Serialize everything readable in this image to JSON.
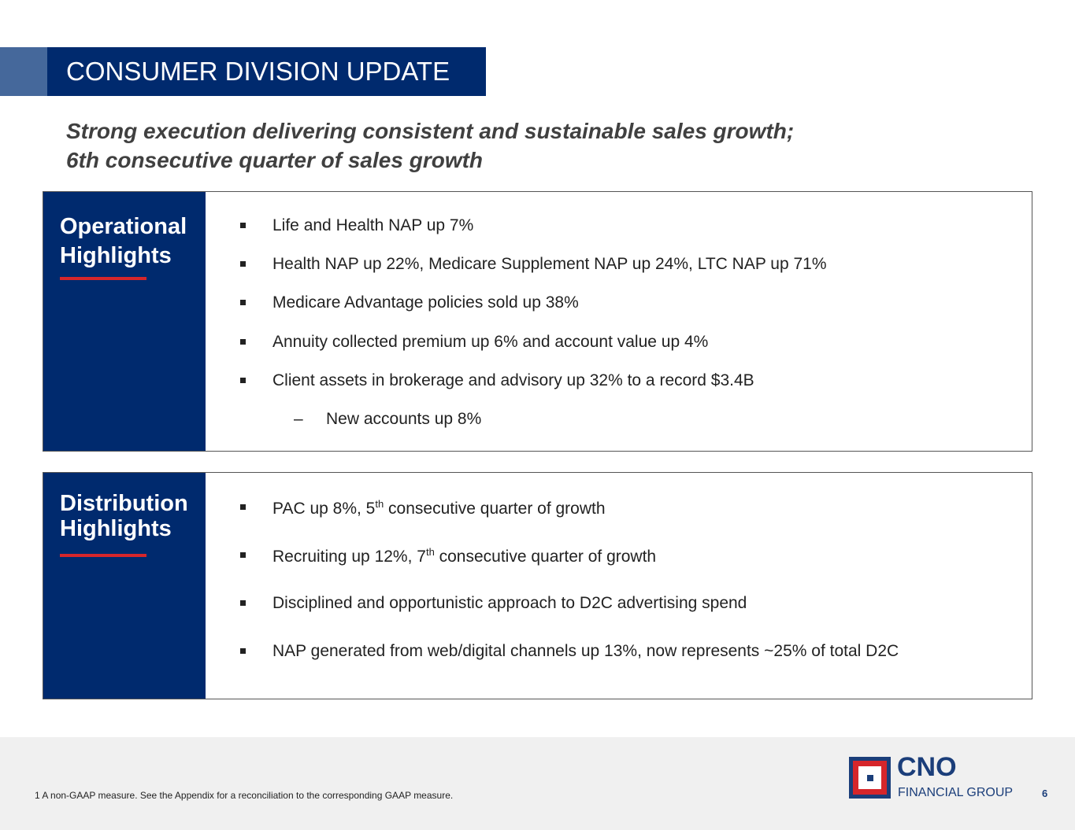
{
  "header": {
    "title": "CONSUMER DIVISION UPDATE"
  },
  "subtitle": {
    "line1": "Strong execution delivering consistent and sustainable sales growth;",
    "line2": "6th consecutive quarter of sales growth"
  },
  "operational": {
    "heading1": "Operational",
    "heading2": "Highlights",
    "items": [
      "Life and Health NAP up 7%",
      "Health NAP up 22%, Medicare Supplement NAP up 24%, LTC NAP up 71%",
      "Medicare Advantage policies sold up 38%",
      "Annuity collected premium up 6% and account value up 4%",
      "Client assets in brokerage and advisory up 32% to a record $3.4B"
    ],
    "subitem": {
      "dash": "–",
      "text": "New accounts up 8%"
    }
  },
  "distribution": {
    "heading1": "Distribution",
    "heading2": "Highlights",
    "items": [
      {
        "pre": "PAC up 8%, 5",
        "sup": "th",
        "post": " consecutive quarter of growth"
      },
      {
        "pre": "Recruiting up 12%, 7",
        "sup": "th",
        "post": " consecutive quarter of growth"
      },
      {
        "pre": "Disciplined and opportunistic approach to D2C advertising spend"
      },
      {
        "pre": "NAP generated from web/digital channels up 13%, now represents ~25% of total D2C"
      }
    ]
  },
  "footer": {
    "footnote": "1  A non-GAAP measure. See the Appendix for a reconciliation to the corresponding GAAP measure.",
    "logo_name": "CNO",
    "logo_sub": "FINANCIAL GROUP",
    "page": "6"
  }
}
